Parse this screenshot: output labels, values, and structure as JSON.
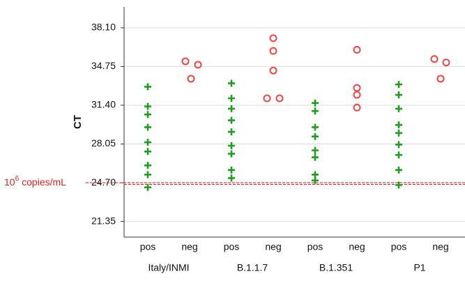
{
  "chart_data": {
    "type": "strip",
    "ylabel": "CT",
    "categories": [
      "pos",
      "neg",
      "pos",
      "neg",
      "pos",
      "neg",
      "pos",
      "neg"
    ],
    "groups": [
      "Italy/INMI",
      "B.1.1.7",
      "B.1.351",
      "P1"
    ],
    "values": [
      [
        33.0,
        31.3,
        30.6,
        29.5,
        28.2,
        27.4,
        26.2,
        25.4,
        24.3
      ],
      [
        35.2,
        34.9,
        33.7
      ],
      [
        33.3,
        32.0,
        31.1,
        30.1,
        29.1,
        27.9,
        27.2,
        25.8,
        25.1
      ],
      [
        37.2,
        36.1,
        34.4,
        32.0,
        32.0
      ],
      [
        31.6,
        30.9,
        29.5,
        28.7,
        27.5,
        26.9,
        25.4,
        24.9
      ],
      [
        36.2,
        32.9,
        32.3,
        31.2
      ],
      [
        33.2,
        32.3,
        31.1,
        29.7,
        29.0,
        28.0,
        27.1,
        25.8,
        24.5
      ],
      [
        35.4,
        35.1,
        33.7
      ]
    ],
    "colors": [
      "#1aa01a",
      "#ef4444"
    ],
    "markers": [
      "plus",
      "circle"
    ],
    "ylim": [
      20,
      39.9
    ],
    "yticks": [
      {
        "value": 38.1,
        "label": "38.10"
      },
      34.75,
      {
        "value": 31.4,
        "label": "31.40"
      },
      28.05,
      {
        "value": 24.7,
        "label": "24.70"
      },
      21.35
    ],
    "grid": true,
    "hline": 24.7,
    "hline_color": "#e02020",
    "annotation": "10",
    "annotation_exponent": "6",
    "annotation_unit": "copies/mL"
  }
}
